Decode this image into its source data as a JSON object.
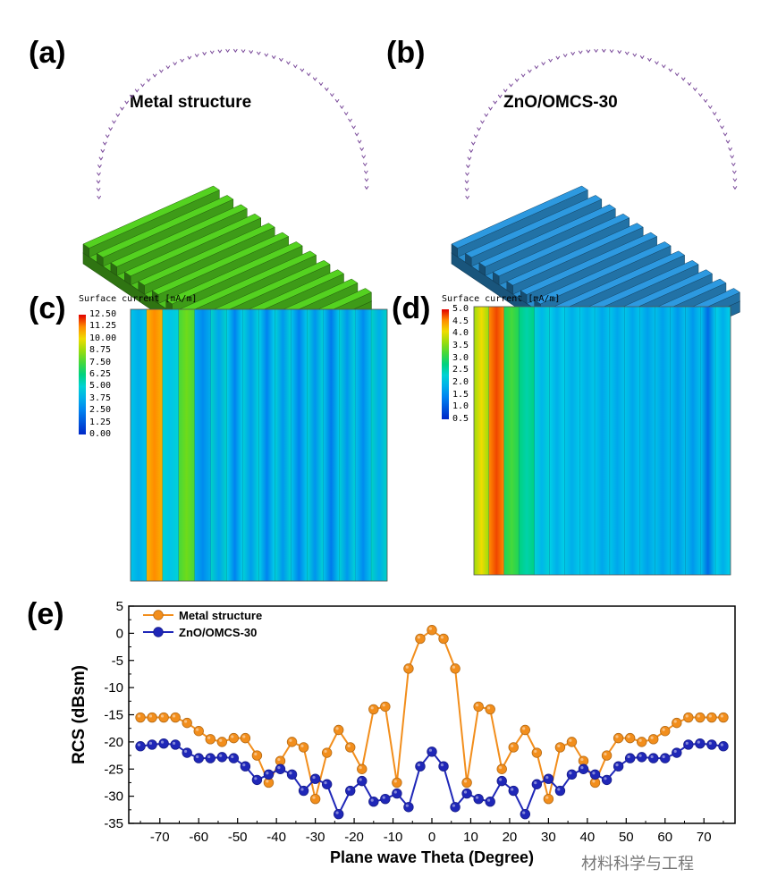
{
  "panels": {
    "a": {
      "label": "(a)",
      "title": "Metal structure",
      "color": "#4ec21e"
    },
    "b": {
      "label": "(b)",
      "title": "ZnO/OMCS-30",
      "color": "#2a8ecf"
    },
    "c": {
      "label": "(c)",
      "legend_title": "Surface current [mA/m]",
      "ticks": [
        "12.50",
        "11.25",
        "10.00",
        "8.75",
        "7.50",
        "6.25",
        "5.00",
        "3.75",
        "2.50",
        "1.25",
        "0.00"
      ]
    },
    "d": {
      "label": "(d)",
      "legend_title": "Surface current [mA/m]",
      "ticks": [
        "5.0",
        "4.5",
        "4.0",
        "3.5",
        "3.0",
        "2.5",
        "2.0",
        "1.5",
        "1.0",
        "0.5"
      ]
    },
    "e": {
      "label": "(e)"
    }
  },
  "watermark": "材料科学与工程",
  "chart_data": {
    "type": "line",
    "title": "",
    "xlabel": "Plane wave Theta (Degree)",
    "ylabel": "RCS (dBsm)",
    "xlim": [
      -78,
      78
    ],
    "ylim": [
      -35,
      5
    ],
    "xticks": [
      -70,
      -60,
      -50,
      -40,
      -30,
      -20,
      -10,
      0,
      10,
      20,
      30,
      40,
      50,
      60,
      70
    ],
    "yticks": [
      5,
      0,
      -5,
      -10,
      -15,
      -20,
      -25,
      -30,
      -35
    ],
    "legend_position": "top-left",
    "x": [
      -75,
      -72,
      -69,
      -66,
      -63,
      -60,
      -57,
      -54,
      -51,
      -48,
      -45,
      -42,
      -39,
      -36,
      -33,
      -30,
      -27,
      -24,
      -21,
      -18,
      -15,
      -12,
      -9,
      -6,
      -3,
      0,
      3,
      6,
      9,
      12,
      15,
      18,
      21,
      24,
      27,
      30,
      33,
      36,
      39,
      42,
      45,
      48,
      51,
      54,
      57,
      60,
      63,
      66,
      69,
      72,
      75
    ],
    "series": [
      {
        "name": "Metal structure",
        "color": "#f28e1c",
        "values": [
          -15.5,
          -15.5,
          -15.5,
          -15.5,
          -16.5,
          -18,
          -19.5,
          -20,
          -19.3,
          -19.3,
          -22.5,
          -27.5,
          -23.5,
          -20,
          -21,
          -30.5,
          -22,
          -17.8,
          -21,
          -25,
          -14,
          -13.5,
          -27.5,
          -6.5,
          -1,
          0.6,
          -1,
          -6.5,
          -27.5,
          -13.5,
          -14,
          -25,
          -21,
          -17.8,
          -22,
          -30.5,
          -21,
          -20,
          -23.5,
          -27.5,
          -22.5,
          -19.3,
          -19.3,
          -20,
          -19.5,
          -18,
          -16.5,
          -15.5,
          -15.5,
          -15.5,
          -15.5
        ]
      },
      {
        "name": "ZnO/OMCS-30",
        "color": "#1f27b8",
        "values": [
          -20.8,
          -20.5,
          -20.3,
          -20.5,
          -22,
          -23,
          -23,
          -22.8,
          -23,
          -24.5,
          -27,
          -26,
          -25,
          -26,
          -29,
          -26.8,
          -27.8,
          -33.3,
          -29,
          -27.2,
          -31,
          -30.5,
          -29.5,
          -32,
          -24.5,
          -21.8,
          -24.5,
          -32,
          -29.5,
          -30.5,
          -31,
          -27.2,
          -29,
          -33.3,
          -27.8,
          -26.8,
          -29,
          -26,
          -25,
          -26,
          -27,
          -24.5,
          -23,
          -22.8,
          -23,
          -23,
          -22,
          -20.5,
          -20.3,
          -20.5,
          -20.8
        ]
      }
    ]
  }
}
